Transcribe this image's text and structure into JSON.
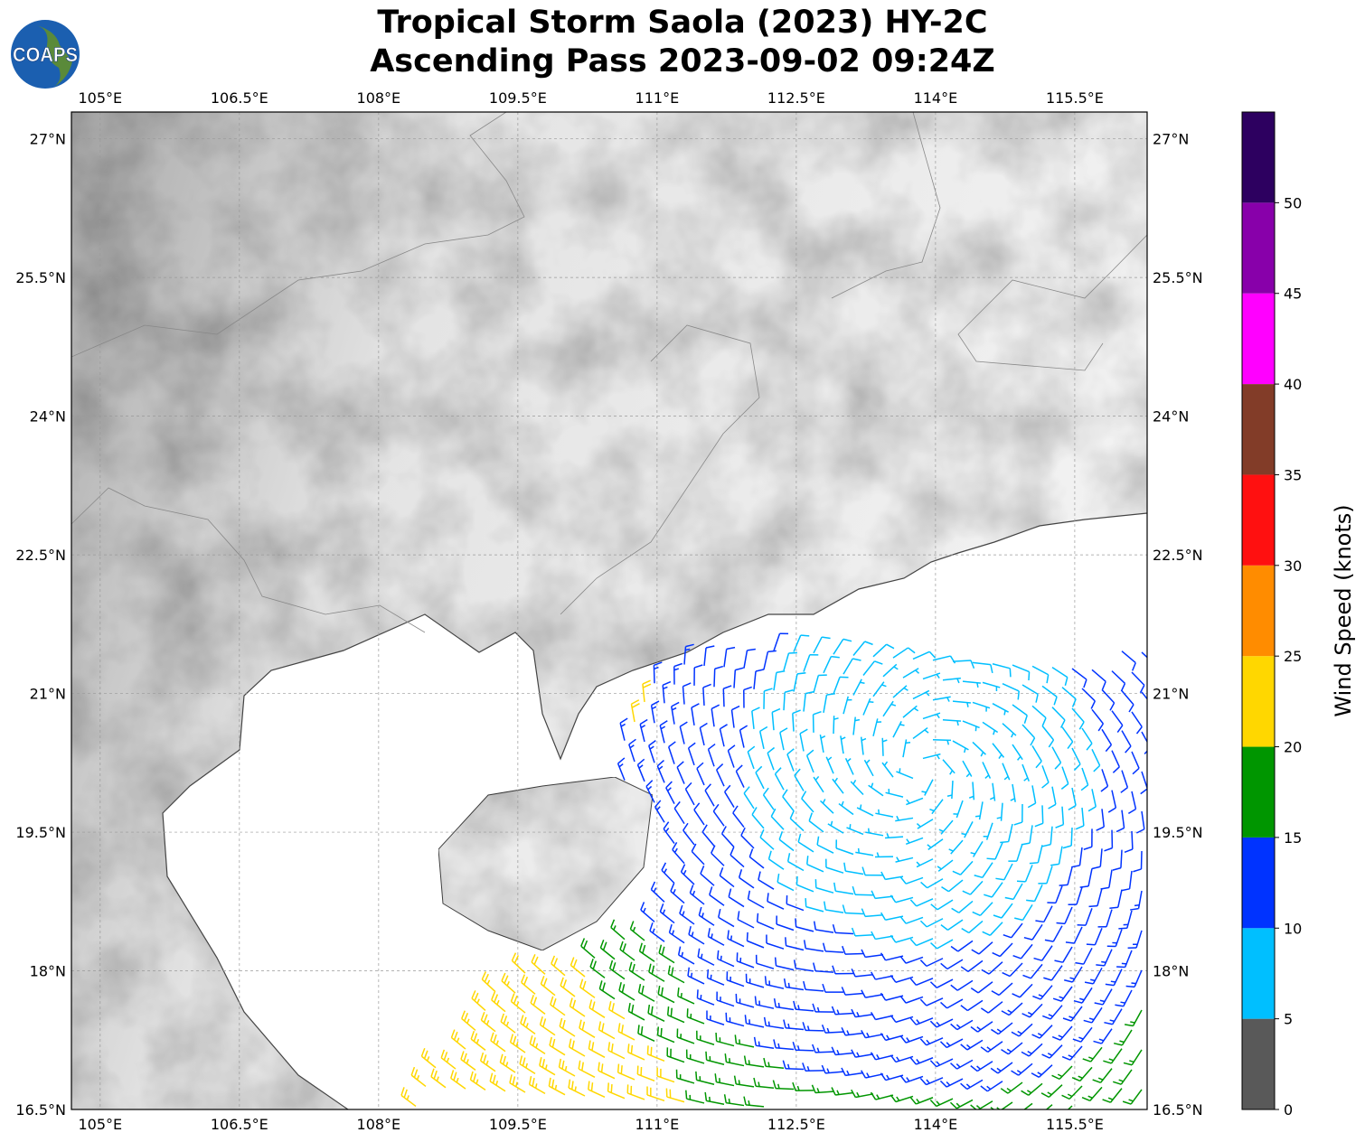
{
  "title": {
    "line1": "Tropical Storm Saola (2023) HY-2C",
    "line2": "Ascending Pass 2023-09-02 09:24Z"
  },
  "logo": {
    "text": "COAPS"
  },
  "map": {
    "lon_ticks": [
      "105°E",
      "106.5°E",
      "108°E",
      "109.5°E",
      "111°E",
      "112.5°E",
      "114°E",
      "115.5°E"
    ],
    "lon_values": [
      105,
      106.5,
      108,
      109.5,
      111,
      112.5,
      114,
      115.5
    ],
    "lat_ticks": [
      "27°N",
      "25.5°N",
      "24°N",
      "22.5°N",
      "21°N",
      "19.5°N",
      "18°N",
      "16.5°N"
    ],
    "lat_values": [
      27,
      25.5,
      24,
      22.5,
      21,
      19.5,
      18,
      16.5
    ],
    "extent": {
      "lon_min": 104.69,
      "lon_max": 116.28,
      "lat_min": 16.5,
      "lat_max": 27.29
    }
  },
  "colorbar": {
    "label": "Wind Speed (knots)",
    "ticks": [
      "0",
      "5",
      "10",
      "15",
      "20",
      "25",
      "30",
      "35",
      "40",
      "45",
      "50"
    ],
    "bounds": [
      0,
      5,
      10,
      15,
      20,
      25,
      30,
      35,
      40,
      45,
      50,
      55
    ],
    "colors": [
      "#595959",
      "#00bfff",
      "#0033ff",
      "#009600",
      "#ffd700",
      "#ff8c00",
      "#ff1010",
      "#823c28",
      "#ff00ff",
      "#8800aa",
      "#2d0060"
    ]
  }
}
